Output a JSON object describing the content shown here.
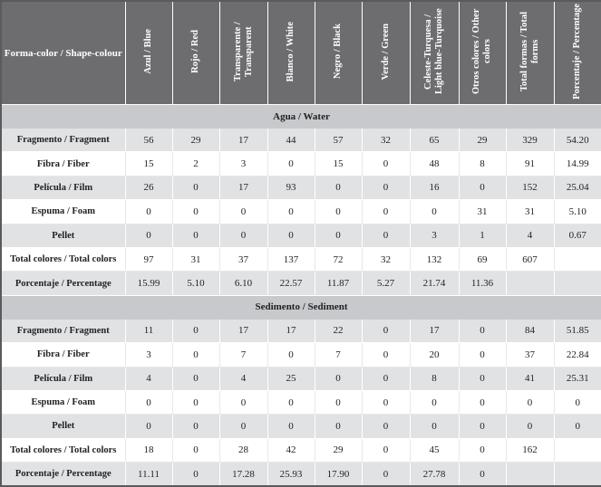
{
  "header": {
    "first": "Forma-color / Shape-colour",
    "columns": [
      "Azul / Blue",
      "Rojo / Red",
      "Transparente / Transparent",
      "Blanco / White",
      "Negro / Black",
      "Verde / Green",
      "Celeste-Turquesa / Light blue-Turquoise",
      "Otros colores / Other colors",
      "Total formas / Total forms",
      "Porcentaje / Percentage"
    ]
  },
  "sections": [
    {
      "title": "Agua / Water",
      "rows": [
        {
          "label": "Fragmento / Fragment",
          "values": [
            "56",
            "29",
            "17",
            "44",
            "57",
            "32",
            "65",
            "29",
            "329",
            "54.20"
          ]
        },
        {
          "label": "Fibra / Fiber",
          "values": [
            "15",
            "2",
            "3",
            "0",
            "15",
            "0",
            "48",
            "8",
            "91",
            "14.99"
          ]
        },
        {
          "label": "Película / Film",
          "values": [
            "26",
            "0",
            "17",
            "93",
            "0",
            "0",
            "16",
            "0",
            "152",
            "25.04"
          ]
        },
        {
          "label": "Espuma / Foam",
          "values": [
            "0",
            "0",
            "0",
            "0",
            "0",
            "0",
            "0",
            "31",
            "31",
            "5.10"
          ]
        },
        {
          "label": "Pellet",
          "values": [
            "0",
            "0",
            "0",
            "0",
            "0",
            "0",
            "3",
            "1",
            "4",
            "0.67"
          ]
        },
        {
          "label": "Total colores / Total colors",
          "values": [
            "97",
            "31",
            "37",
            "137",
            "72",
            "32",
            "132",
            "69",
            "607",
            ""
          ]
        },
        {
          "label": "Porcentaje / Percentage",
          "values": [
            "15.99",
            "5.10",
            "6.10",
            "22.57",
            "11.87",
            "5.27",
            "21.74",
            "11.36",
            "",
            ""
          ]
        }
      ]
    },
    {
      "title": "Sedimento / Sediment",
      "rows": [
        {
          "label": "Fragmento / Fragment",
          "values": [
            "11",
            "0",
            "17",
            "17",
            "22",
            "0",
            "17",
            "0",
            "84",
            "51.85"
          ]
        },
        {
          "label": "Fibra / Fiber",
          "values": [
            "3",
            "0",
            "7",
            "0",
            "7",
            "0",
            "20",
            "0",
            "37",
            "22.84"
          ]
        },
        {
          "label": "Película / Film",
          "values": [
            "4",
            "0",
            "4",
            "25",
            "0",
            "0",
            "8",
            "0",
            "41",
            "25.31"
          ]
        },
        {
          "label": "Espuma / Foam",
          "values": [
            "0",
            "0",
            "0",
            "0",
            "0",
            "0",
            "0",
            "0",
            "0",
            "0"
          ]
        },
        {
          "label": "Pellet",
          "values": [
            "0",
            "0",
            "0",
            "0",
            "0",
            "0",
            "0",
            "0",
            "0",
            "0"
          ]
        },
        {
          "label": "Total colores / Total colors",
          "values": [
            "18",
            "0",
            "28",
            "42",
            "29",
            "0",
            "45",
            "0",
            "162",
            ""
          ]
        },
        {
          "label": "Porcentaje / Percentage",
          "values": [
            "11.11",
            "0",
            "17.28",
            "25.93",
            "17.90",
            "0",
            "27.78",
            "0",
            "",
            ""
          ]
        }
      ]
    }
  ]
}
